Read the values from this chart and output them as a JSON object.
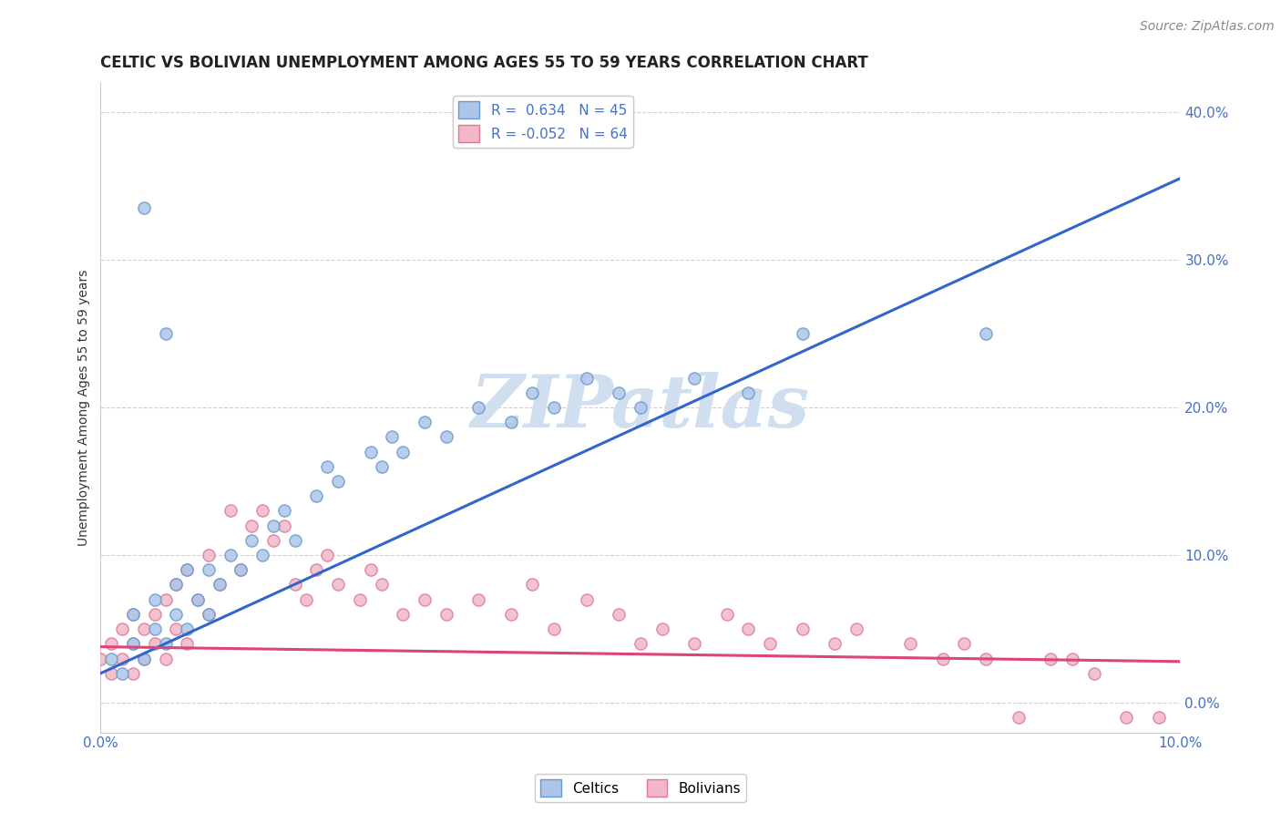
{
  "title": "CELTIC VS BOLIVIAN UNEMPLOYMENT AMONG AGES 55 TO 59 YEARS CORRELATION CHART",
  "source": "Source: ZipAtlas.com",
  "ylabel": "Unemployment Among Ages 55 to 59 years",
  "xlim": [
    0.0,
    0.1
  ],
  "ylim": [
    -0.02,
    0.42
  ],
  "xtick_positions": [
    0.0,
    0.1
  ],
  "xtick_labels": [
    "0.0%",
    "10.0%"
  ],
  "ytick_positions": [
    0.0,
    0.1,
    0.2,
    0.3,
    0.4
  ],
  "ytick_labels": [
    "0.0%",
    "10.0%",
    "20.0%",
    "30.0%",
    "40.0%"
  ],
  "background_color": "#ffffff",
  "grid_color": "#cccccc",
  "celtics_color": "#adc6e8",
  "bolivians_color": "#f2b8c8",
  "celtics_edge_color": "#6699cc",
  "bolivians_edge_color": "#dd7799",
  "trendline_celtic_color": "#3366cc",
  "trendline_bolivian_color": "#dd4477",
  "celtic_trend_x0": 0.0,
  "celtic_trend_y0": 0.02,
  "celtic_trend_x1": 0.1,
  "celtic_trend_y1": 0.355,
  "bolivian_trend_x0": 0.0,
  "bolivian_trend_y0": 0.038,
  "bolivian_trend_x1": 0.1,
  "bolivian_trend_y1": 0.028,
  "R_celtic": 0.634,
  "N_celtic": 45,
  "R_bolivian": -0.052,
  "N_bolivian": 64,
  "celtics_x": [
    0.001,
    0.002,
    0.003,
    0.003,
    0.004,
    0.005,
    0.005,
    0.006,
    0.007,
    0.007,
    0.008,
    0.008,
    0.009,
    0.01,
    0.01,
    0.011,
    0.012,
    0.013,
    0.014,
    0.015,
    0.016,
    0.017,
    0.018,
    0.02,
    0.021,
    0.022,
    0.025,
    0.026,
    0.027,
    0.028,
    0.03,
    0.032,
    0.035,
    0.038,
    0.04,
    0.042,
    0.045,
    0.048,
    0.05,
    0.055,
    0.06,
    0.065,
    0.082,
    0.006,
    0.004
  ],
  "celtics_y": [
    0.03,
    0.02,
    0.04,
    0.06,
    0.03,
    0.05,
    0.07,
    0.04,
    0.06,
    0.08,
    0.05,
    0.09,
    0.07,
    0.06,
    0.09,
    0.08,
    0.1,
    0.09,
    0.11,
    0.1,
    0.12,
    0.13,
    0.11,
    0.14,
    0.16,
    0.15,
    0.17,
    0.16,
    0.18,
    0.17,
    0.19,
    0.18,
    0.2,
    0.19,
    0.21,
    0.2,
    0.22,
    0.21,
    0.2,
    0.22,
    0.21,
    0.25,
    0.25,
    0.25,
    0.335
  ],
  "bolivians_x": [
    0.0,
    0.001,
    0.001,
    0.002,
    0.002,
    0.003,
    0.003,
    0.003,
    0.004,
    0.004,
    0.005,
    0.005,
    0.006,
    0.006,
    0.007,
    0.007,
    0.008,
    0.008,
    0.009,
    0.01,
    0.01,
    0.011,
    0.012,
    0.013,
    0.014,
    0.015,
    0.016,
    0.017,
    0.018,
    0.019,
    0.02,
    0.021,
    0.022,
    0.024,
    0.025,
    0.026,
    0.028,
    0.03,
    0.032,
    0.035,
    0.038,
    0.04,
    0.042,
    0.045,
    0.048,
    0.05,
    0.052,
    0.055,
    0.058,
    0.06,
    0.062,
    0.065,
    0.068,
    0.07,
    0.075,
    0.078,
    0.08,
    0.082,
    0.085,
    0.088,
    0.09,
    0.092,
    0.095,
    0.098
  ],
  "bolivians_y": [
    0.03,
    0.02,
    0.04,
    0.03,
    0.05,
    0.02,
    0.04,
    0.06,
    0.03,
    0.05,
    0.04,
    0.06,
    0.03,
    0.07,
    0.05,
    0.08,
    0.04,
    0.09,
    0.07,
    0.06,
    0.1,
    0.08,
    0.13,
    0.09,
    0.12,
    0.13,
    0.11,
    0.12,
    0.08,
    0.07,
    0.09,
    0.1,
    0.08,
    0.07,
    0.09,
    0.08,
    0.06,
    0.07,
    0.06,
    0.07,
    0.06,
    0.08,
    0.05,
    0.07,
    0.06,
    0.04,
    0.05,
    0.04,
    0.06,
    0.05,
    0.04,
    0.05,
    0.04,
    0.05,
    0.04,
    0.03,
    0.04,
    0.03,
    -0.01,
    0.03,
    0.03,
    0.02,
    -0.01,
    -0.01
  ],
  "title_fontsize": 12,
  "axis_label_fontsize": 10,
  "tick_fontsize": 11,
  "source_fontsize": 10,
  "marker_size": 90,
  "watermark": "ZIPatlas",
  "watermark_color": "#d0dff0",
  "watermark_fontsize": 58
}
